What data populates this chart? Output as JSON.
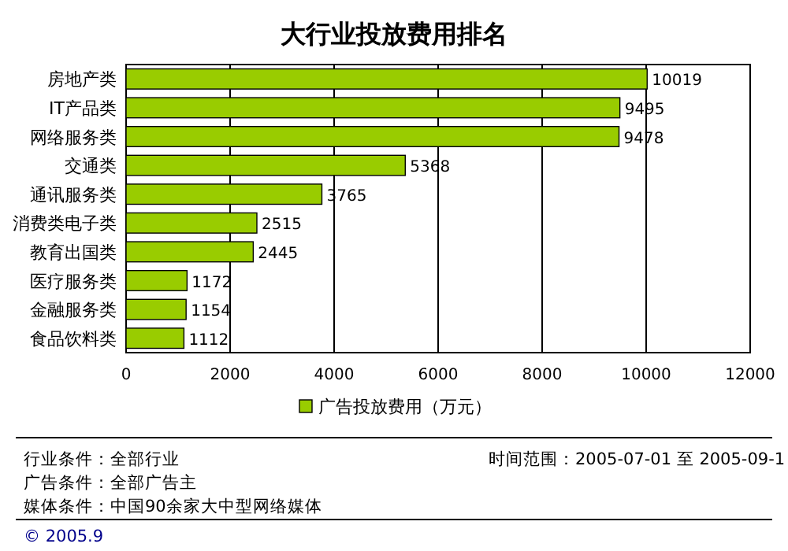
{
  "chart_data": {
    "type": "bar",
    "title": "大行业投放费用排名",
    "orientation": "horizontal",
    "categories": [
      "房地产类",
      "IT产品类",
      "网络服务类",
      "交通类",
      "通讯服务类",
      "消费类电子类",
      "教育出国类",
      "医疗服务类",
      "金融服务类",
      "食品饮料类"
    ],
    "series": [
      {
        "name": "广告投放费用（万元）",
        "color": "#99cc00",
        "values": [
          10019,
          9495,
          9478,
          5368,
          3765,
          2515,
          2445,
          1172,
          1154,
          1112
        ]
      }
    ],
    "xlim": [
      0,
      12000
    ],
    "xticks": [
      0,
      2000,
      4000,
      6000,
      8000,
      10000,
      12000
    ],
    "grid": "x",
    "legend": "bottom",
    "data_labels": true,
    "annotations": [
      "行业条件：全部行业",
      "广告条件：全部广告主",
      "媒体条件：中国90余家大中型网络媒体",
      "时间范围：2005-07-01 至 2005-09-1",
      "© 2005.9"
    ]
  }
}
